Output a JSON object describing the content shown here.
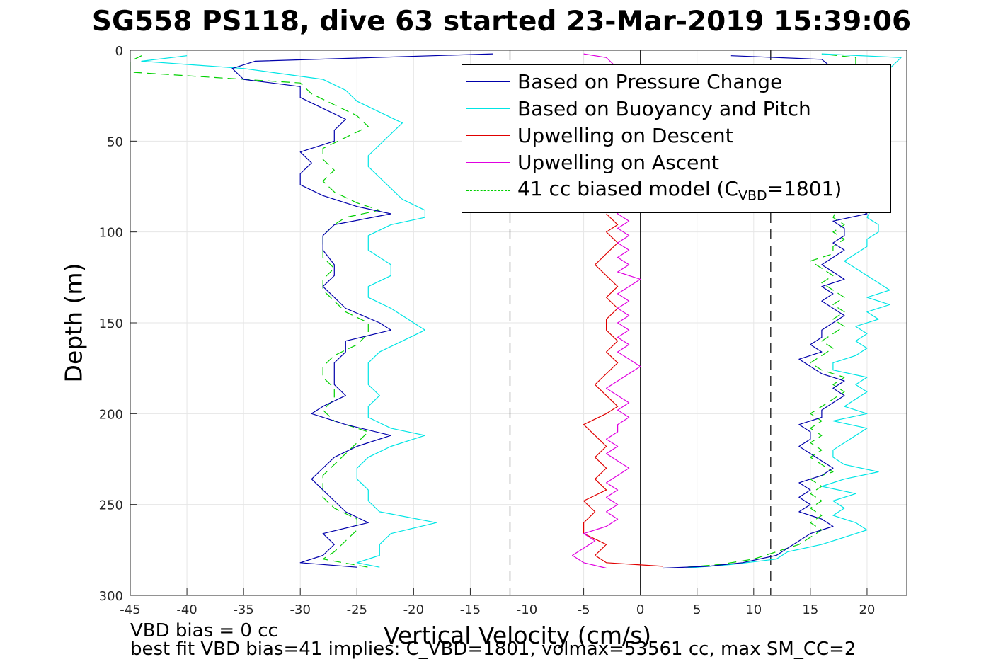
{
  "title": "SG558 PS118, dive 63 started 23-Mar-2019 15:39:06",
  "notes": {
    "line1": "VBD bias = 0 cc",
    "line2": "best fit VBD bias=41 implies: C_VBD=1801, volmax=53561 cc, max SM_CC=2"
  },
  "legend": {
    "items": [
      {
        "label": "Based on Pressure Change",
        "color": "#0000aa",
        "dash": "solid"
      },
      {
        "label": "Based on Buoyancy and Pitch",
        "color": "#00e5e5",
        "dash": "solid"
      },
      {
        "label": "Upwelling on Descent",
        "color": "#e00000",
        "dash": "solid"
      },
      {
        "label": "Upwelling on Ascent",
        "color": "#e000e0",
        "dash": "solid"
      },
      {
        "label": "41 cc biased model (C",
        "sub": "VBD",
        "suffix": "=1801)",
        "color": "#00d000",
        "dash": "dashed"
      }
    ]
  },
  "chart_data": {
    "type": "line",
    "xlabel": "Vertical Velocity (cm/s)",
    "ylabel": "Depth (m)",
    "xlim": [
      -45,
      23.5
    ],
    "ylim": [
      0,
      300
    ],
    "y_reversed": true,
    "grid": true,
    "xticks": [
      -45,
      -40,
      -35,
      -30,
      -25,
      -20,
      -15,
      -10,
      -5,
      0,
      5,
      10,
      15,
      20
    ],
    "yticks": [
      0,
      50,
      100,
      150,
      200,
      250,
      300
    ],
    "reference_lines": {
      "vertical_solid": [
        0
      ],
      "vertical_dashed": [
        -11.5,
        11.5
      ]
    },
    "series": [
      {
        "name": "Based on Pressure Change",
        "color": "#0000aa",
        "descent": {
          "depth": [
            2,
            6,
            10,
            16,
            20,
            26,
            32,
            38,
            44,
            50,
            56,
            62,
            68,
            74,
            80,
            86,
            90,
            96,
            102,
            110,
            118,
            124,
            130,
            136,
            142,
            150,
            154,
            160,
            166,
            172,
            178,
            184,
            190,
            196,
            200,
            206,
            212,
            218,
            224,
            230,
            236,
            242,
            248,
            254,
            260,
            266,
            272,
            278,
            282,
            284.5
          ],
          "v": [
            -13,
            -34,
            -36,
            -35,
            -30,
            -30,
            -28,
            -26,
            -27,
            -27,
            -30,
            -29,
            -30,
            -30,
            -28,
            -25,
            -22,
            -27,
            -28,
            -28,
            -27,
            -27,
            -28,
            -27,
            -26,
            -23,
            -22,
            -26,
            -26,
            -27,
            -27,
            -27,
            -26,
            -28,
            -29,
            -26,
            -22,
            -25,
            -27,
            -28,
            -29,
            -28,
            -27,
            -26,
            -24,
            -28,
            -27,
            -28,
            -30,
            -25
          ]
        },
        "ascent": {
          "depth": [
            285,
            284,
            282,
            278,
            274,
            270,
            266,
            262,
            258,
            254,
            250,
            246,
            242,
            238,
            234,
            230,
            226,
            222,
            218,
            214,
            210,
            206,
            202,
            198,
            194,
            190,
            186,
            182,
            178,
            174,
            170,
            166,
            162,
            158,
            154,
            150,
            146,
            142,
            138,
            134,
            130,
            126,
            122,
            118,
            114,
            110,
            106,
            102,
            98,
            94,
            90,
            80,
            60,
            40,
            20,
            10,
            5,
            3
          ],
          "v": [
            2,
            6,
            9,
            12,
            13,
            14,
            15,
            17,
            16,
            14,
            15,
            14,
            15,
            14,
            16,
            17,
            16,
            15,
            14,
            15,
            15,
            14,
            16,
            16,
            17,
            18,
            17,
            18,
            16,
            15,
            14,
            16,
            15,
            16,
            16,
            17,
            18,
            17,
            16,
            17,
            16,
            18,
            17,
            16,
            17,
            18,
            17,
            18,
            18,
            17,
            20,
            17,
            18,
            18,
            18,
            17,
            16,
            8
          ]
        }
      },
      {
        "name": "Based on Buoyancy and Pitch",
        "color": "#00e5e5",
        "descent": {
          "depth": [
            3,
            6,
            10,
            16,
            22,
            28,
            34,
            40,
            46,
            52,
            58,
            64,
            70,
            76,
            82,
            88,
            92,
            96,
            102,
            110,
            118,
            124,
            130,
            136,
            142,
            150,
            154,
            160,
            166,
            172,
            178,
            184,
            190,
            196,
            202,
            208,
            212,
            218,
            224,
            230,
            236,
            242,
            248,
            254,
            260,
            266,
            272,
            278,
            282,
            284.5
          ],
          "v": [
            -40,
            -44,
            -35,
            -28,
            -26,
            -25,
            -23,
            -21,
            -22,
            -23,
            -24,
            -24,
            -23,
            -22,
            -21,
            -19,
            -19,
            -22,
            -24,
            -24,
            -22,
            -22,
            -24,
            -24,
            -22,
            -20,
            -19,
            -21,
            -23,
            -24,
            -24,
            -24,
            -23,
            -24,
            -24,
            -22,
            -19,
            -22,
            -24,
            -25,
            -25,
            -24,
            -24,
            -23,
            -18,
            -22,
            -23,
            -23,
            -25,
            -23
          ]
        },
        "ascent": {
          "depth": [
            285,
            283,
            280,
            276,
            272,
            268,
            264,
            260,
            256,
            252,
            248,
            244,
            240,
            236,
            232,
            228,
            224,
            220,
            216,
            212,
            208,
            204,
            200,
            196,
            192,
            188,
            184,
            180,
            176,
            172,
            168,
            164,
            160,
            156,
            152,
            148,
            144,
            140,
            136,
            132,
            128,
            124,
            120,
            116,
            112,
            108,
            104,
            100,
            96,
            92,
            80,
            60,
            40,
            22,
            10,
            4,
            2
          ],
          "v": [
            4,
            8,
            12,
            13,
            16,
            18,
            20,
            19,
            17,
            18,
            17,
            19,
            16,
            18,
            21,
            18,
            17,
            17,
            18,
            19,
            20,
            17,
            20,
            18,
            19,
            20,
            19,
            20,
            17,
            17,
            19,
            20,
            19,
            20,
            19,
            21,
            20,
            22,
            20,
            22,
            21,
            20,
            19,
            18,
            19,
            20,
            20,
            21,
            21,
            20,
            21,
            21,
            22,
            22,
            22,
            23,
            16
          ]
        }
      },
      {
        "name": "Upwelling on Descent",
        "color": "#e00000",
        "descent": {
          "depth": [
            90,
            96,
            100,
            106,
            112,
            118,
            124,
            130,
            136,
            142,
            148,
            154,
            160,
            166,
            172,
            178,
            184,
            190,
            196,
            200,
            206,
            212,
            218,
            224,
            230,
            236,
            242,
            248,
            254,
            260,
            266,
            272,
            278,
            282,
            284
          ],
          "v": [
            -3,
            -2,
            -3,
            -2,
            -3,
            -4,
            -3,
            -2,
            -3,
            -2,
            -3,
            -3,
            -2,
            -3,
            -2,
            -3,
            -4,
            -3,
            -2,
            -3,
            -5,
            -4,
            -3,
            -4,
            -3,
            -4,
            -3,
            -5,
            -4,
            -5,
            -5,
            -3,
            -4,
            -3,
            2
          ]
        }
      },
      {
        "name": "Upwelling on Ascent",
        "color": "#e000e0",
        "ascent": {
          "depth": [
            285,
            282,
            278,
            274,
            270,
            266,
            262,
            258,
            254,
            250,
            246,
            242,
            238,
            234,
            230,
            226,
            222,
            218,
            214,
            210,
            206,
            202,
            198,
            194,
            190,
            186,
            182,
            178,
            174,
            170,
            166,
            162,
            158,
            154,
            150,
            146,
            142,
            138,
            134,
            130,
            126,
            122,
            118,
            114,
            110,
            106,
            102,
            98,
            94,
            90,
            20,
            10,
            4,
            2
          ],
          "v": [
            -3,
            -5,
            -6,
            -5,
            -4,
            -5,
            -3,
            -2,
            -3,
            -2,
            -3,
            -2,
            -3,
            -2,
            -1,
            -2,
            -3,
            -2,
            -3,
            -2,
            -2,
            -1,
            -2,
            -1,
            -2,
            -3,
            -2,
            -1,
            0,
            -1,
            -2,
            -1,
            -2,
            -1,
            -2,
            -1,
            -2,
            -1,
            -2,
            -1,
            0,
            -2,
            -1,
            -2,
            -1,
            -2,
            -1,
            -2,
            -1,
            -2,
            -1,
            -2,
            -3,
            -5
          ]
        }
      },
      {
        "name": "41 cc biased model (C_VBD=1801)",
        "color": "#00d000",
        "dash": "dashed",
        "descent": {
          "depth": [
            3,
            6,
            12,
            18,
            24,
            30,
            36,
            42,
            48,
            54,
            60,
            66,
            72,
            78,
            84,
            88,
            92,
            96,
            102,
            108,
            114,
            120,
            126,
            132,
            138,
            144,
            150,
            156,
            162,
            168,
            174,
            180,
            186,
            192,
            198,
            204,
            210,
            216,
            222,
            228,
            234,
            240,
            246,
            252,
            258,
            264,
            270,
            276,
            280,
            284.5
          ],
          "v": [
            -44,
            -45,
            -45,
            -30,
            -29,
            -27,
            -25,
            -24,
            -26,
            -28,
            -28,
            -27,
            -28,
            -27,
            -25,
            -23,
            -26,
            -27,
            -28,
            -28,
            -28,
            -27,
            -28,
            -28,
            -27,
            -26,
            -24,
            -24,
            -25,
            -27,
            -28,
            -28,
            -27,
            -27,
            -28,
            -27,
            -24,
            -25,
            -26,
            -27,
            -28,
            -28,
            -28,
            -27,
            -25,
            -25,
            -26,
            -27,
            -28,
            -24
          ]
        },
        "ascent": {
          "depth": [
            285,
            283,
            280,
            276,
            272,
            268,
            264,
            260,
            256,
            252,
            248,
            244,
            240,
            236,
            232,
            228,
            224,
            220,
            216,
            212,
            208,
            204,
            200,
            196,
            192,
            188,
            184,
            180,
            176,
            172,
            168,
            164,
            160,
            156,
            152,
            148,
            144,
            140,
            136,
            132,
            128,
            124,
            120,
            116,
            112,
            108,
            104,
            100,
            96,
            92,
            80,
            60,
            40,
            22,
            10,
            4,
            2
          ],
          "v": [
            3,
            7,
            10,
            12,
            14,
            15,
            16,
            15,
            16,
            15,
            16,
            15,
            16,
            15,
            17,
            16,
            15,
            16,
            15,
            16,
            15,
            16,
            15,
            16,
            17,
            18,
            17,
            18,
            16,
            15,
            16,
            17,
            16,
            17,
            18,
            17,
            18,
            17,
            18,
            17,
            16,
            17,
            16,
            15,
            17,
            17,
            18,
            17,
            18,
            17,
            18,
            18,
            19,
            19,
            19,
            19,
            16
          ]
        }
      }
    ]
  }
}
